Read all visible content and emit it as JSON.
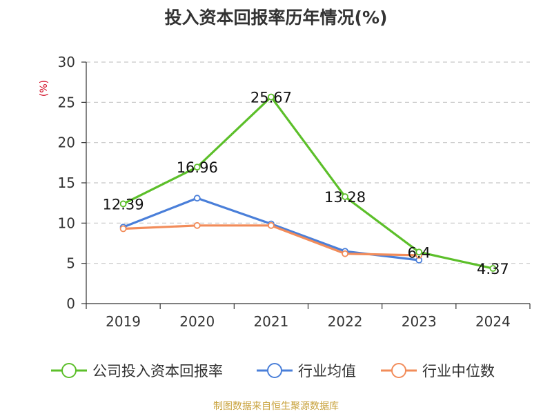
{
  "chart_data": {
    "type": "line",
    "title": "投入资本回报率历年情况(%)",
    "ylabel": "(%)",
    "xlabel": "",
    "ylim": [
      0,
      30
    ],
    "yticks": [
      0,
      5,
      10,
      15,
      20,
      25,
      30
    ],
    "categories": [
      "2019",
      "2020",
      "2021",
      "2022",
      "2023",
      "2024"
    ],
    "grid": true,
    "legend_position": "bottom",
    "series": [
      {
        "name": "公司投入资本回报率",
        "color": "#5cbf2a",
        "values": [
          12.39,
          16.96,
          25.67,
          13.28,
          6.4,
          4.37
        ],
        "labels": [
          "12.39",
          "16.96",
          "25.67",
          "13.28",
          "6.4",
          "4.37"
        ]
      },
      {
        "name": "行业均值",
        "color": "#4a7fd9",
        "values": [
          9.5,
          13.1,
          9.9,
          6.5,
          5.4,
          null
        ]
      },
      {
        "name": "行业中位数",
        "color": "#f28c5a",
        "values": [
          9.3,
          9.7,
          9.7,
          6.2,
          6.0,
          null
        ]
      }
    ]
  },
  "source": "制图数据来自恒生聚源数据库"
}
